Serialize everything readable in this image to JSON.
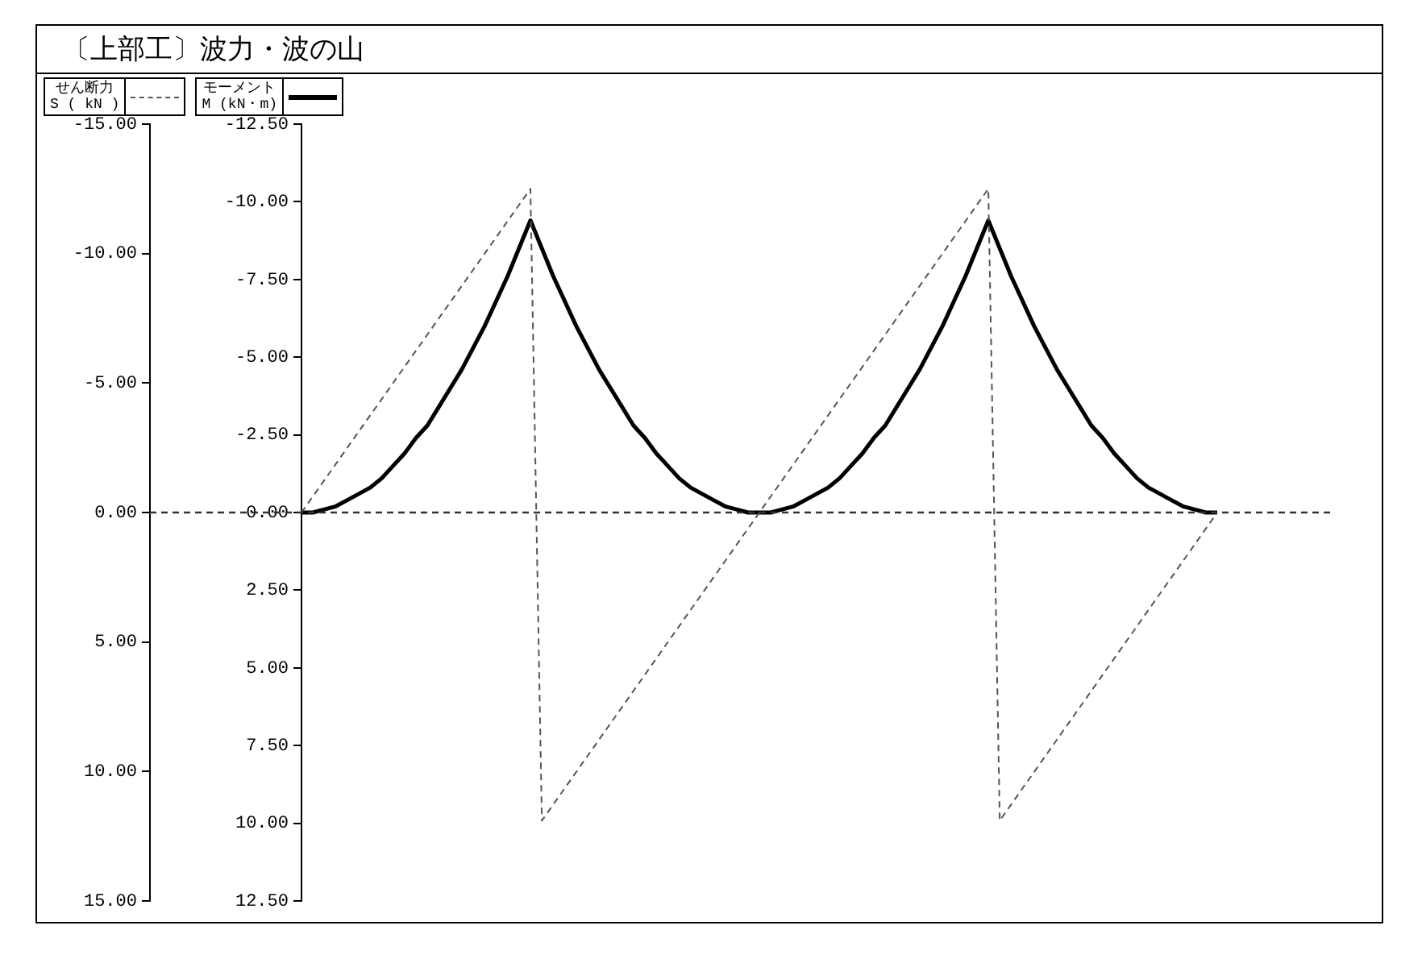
{
  "chart_data": {
    "type": "line",
    "title": "〔上部工〕波力・波の山",
    "categories": [
      null,
      null,
      null,
      null,
      null,
      null,
      null,
      null,
      null,
      null,
      null,
      null,
      null,
      null,
      null,
      null,
      null,
      null,
      null,
      null,
      null,
      null,
      null,
      null,
      null,
      null,
      null,
      null,
      null,
      null,
      null,
      null,
      null,
      null,
      null,
      null,
      null,
      null,
      null,
      null,
      null,
      null,
      null,
      null,
      null,
      null,
      null,
      null,
      null,
      null,
      null,
      null,
      null,
      null,
      null,
      null,
      null,
      null,
      null,
      null,
      null,
      null,
      null,
      null,
      null,
      null,
      null,
      null,
      null,
      null,
      null,
      null,
      null,
      null,
      null,
      null,
      null,
      null,
      null,
      null,
      null
    ],
    "ylim": [
      15,
      -15
    ],
    "y2lim": [
      12.5,
      -12.5
    ],
    "yticks": [
      {
        "value": -15,
        "label": "-15.00"
      },
      {
        "value": -10,
        "label": "-10.00"
      },
      {
        "value": -5,
        "label": "-5.00"
      },
      {
        "value": 0,
        "label": "0.00"
      },
      {
        "value": 5,
        "label": "5.00"
      },
      {
        "value": 10,
        "label": "10.00"
      },
      {
        "value": 15,
        "label": "15.00"
      }
    ],
    "y2ticks": [
      {
        "value": -12.5,
        "label": "-12.50"
      },
      {
        "value": -10,
        "label": "-10.00"
      },
      {
        "value": -7.5,
        "label": "-7.50"
      },
      {
        "value": -5,
        "label": "-5.00"
      },
      {
        "value": -2.5,
        "label": "-2.50"
      },
      {
        "value": 0,
        "label": "0.00"
      },
      {
        "value": 2.5,
        "label": "2.50"
      },
      {
        "value": 5,
        "label": "5.00"
      },
      {
        "value": 7.5,
        "label": "7.50"
      },
      {
        "value": 10,
        "label": "10.00"
      },
      {
        "value": 12.5,
        "label": "12.50"
      }
    ],
    "tick_labels": "y",
    "grid": false,
    "legend": "top left",
    "marker": "none",
    "series": [
      {
        "name": "せん断力\nS ( kN )",
        "color": "#555555",
        "line_style": "dashed",
        "values": [
          0,
          null,
          null,
          null,
          null,
          null,
          null,
          null,
          null,
          null,
          null,
          null,
          null,
          null,
          null,
          null,
          null,
          null,
          null,
          null,
          -12.5,
          11.9,
          null,
          null,
          null,
          null,
          null,
          null,
          null,
          null,
          null,
          null,
          null,
          null,
          null,
          null,
          null,
          null,
          null,
          null,
          0,
          null,
          null,
          null,
          null,
          null,
          null,
          null,
          null,
          null,
          null,
          null,
          null,
          null,
          null,
          null,
          null,
          null,
          null,
          null,
          -12.5,
          11.9,
          null,
          null,
          null,
          null,
          null,
          null,
          null,
          null,
          null,
          null,
          null,
          null,
          null,
          null,
          null,
          null,
          null,
          null,
          0
        ]
      },
      {
        "name": "モーメント\nM (kN・m)",
        "color": "#000000",
        "line_style": "solid",
        "axis": "y2",
        "values": [
          0,
          0,
          -0.1,
          -0.2,
          -0.4,
          -0.6,
          -0.8,
          -1.1,
          -1.5,
          -1.9,
          -2.4,
          -2.8,
          -3.4,
          -4.0,
          -4.6,
          -5.3,
          -6.0,
          -6.8,
          -7.6,
          -8.5,
          -9.4,
          -8.5,
          -7.6,
          -6.8,
          -6.0,
          -5.3,
          -4.6,
          -4.0,
          -3.4,
          -2.8,
          -2.4,
          -1.9,
          -1.5,
          -1.1,
          -0.8,
          -0.6,
          -0.4,
          -0.2,
          -0.1,
          0,
          0,
          0,
          -0.1,
          -0.2,
          -0.4,
          -0.6,
          -0.8,
          -1.1,
          -1.5,
          -1.9,
          -2.4,
          -2.8,
          -3.4,
          -4.0,
          -4.6,
          -5.3,
          -6.0,
          -6.8,
          -7.6,
          -8.5,
          -9.4,
          -8.5,
          -7.6,
          -6.8,
          -6.0,
          -5.3,
          -4.6,
          -4.0,
          -3.4,
          -2.8,
          -2.4,
          -1.9,
          -1.5,
          -1.1,
          -0.8,
          -0.6,
          -0.4,
          -0.2,
          -0.1,
          0,
          0
        ]
      }
    ],
    "ref_lines": [
      {
        "axis": "y",
        "value": 0,
        "line_style": "dashed",
        "color": "#333333"
      }
    ]
  }
}
